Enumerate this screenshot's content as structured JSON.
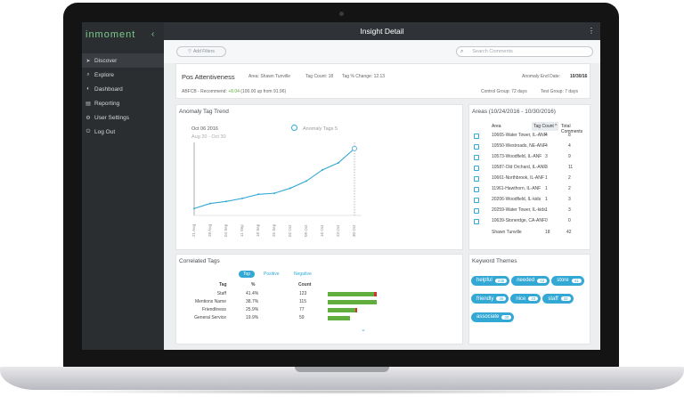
{
  "sidebar": {
    "logo": "inmoment",
    "collapse_icon": "chevron-left-icon",
    "items": [
      {
        "label": "Discover"
      },
      {
        "label": "Explore"
      },
      {
        "label": "Dashboard"
      },
      {
        "label": "Reporting"
      },
      {
        "label": "User Settings"
      },
      {
        "label": "Log Out"
      }
    ]
  },
  "header": {
    "title": "Insight Detail",
    "menu_icon": "kebab-icon"
  },
  "filters": {
    "add_label": "Add Filters",
    "search_placeholder": "Search Comments"
  },
  "summary": {
    "name": "Pos Attentiveness",
    "area": "Area: Shawn Tunville",
    "tag_count": "Tag Count: 18",
    "tag_change": "Tag % Change: 12.13",
    "anomaly_end_label": "Anomaly End Date:",
    "anomaly_end_value": "10/30/16",
    "recommend_prefix": "ABFCB - Recommend:",
    "recommend_delta": "+8.04",
    "recommend_suffix": "(100.00 up from 91.96)",
    "control_group": "Control Group: 72 days",
    "test_group": "Test Group: 7 days"
  },
  "trend": {
    "title": "Anomaly Tag Trend",
    "date": "Oct 06 2016",
    "range": "Aug 20 - Oct 30",
    "legend": "Anomaly Tags 5"
  },
  "chart_data": {
    "type": "line",
    "title": "Anomaly Tag Trend",
    "x": [
      "21 Aug",
      "28 Aug",
      "04 Sep",
      "11 Sep",
      "18 Sep",
      "25 Sep",
      "02 Oct",
      "09 Oct",
      "16 Oct",
      "23 Oct",
      "30 Oct"
    ],
    "series": [
      {
        "name": "Anomaly Tags",
        "values": [
          0.5,
          1.0,
          1.2,
          1.5,
          1.9,
          2.0,
          2.5,
          3.2,
          4.3,
          5.0,
          6.4
        ]
      }
    ]
  },
  "areas": {
    "title": "Areas (10/24/2016 - 10/30/2016)",
    "headers": [
      "Area",
      "Tag Count",
      "Total Comments"
    ],
    "sort_icon": "caret-up-icon",
    "rows": [
      [
        "10665-Water Tower, IL-ANF",
        "4",
        "8"
      ],
      [
        "10550-Westroads, NE-ANF",
        "4",
        "4"
      ],
      [
        "10573-Woodfield, IL-ANF",
        "3",
        "9"
      ],
      [
        "10587-Old Orchard, IL-ANF",
        "3",
        "11"
      ],
      [
        "10661-Northbrook, IL-ANF",
        "1",
        "2"
      ],
      [
        "11961-Hawthorn, IL-ANF",
        "1",
        "2"
      ],
      [
        "20206-Woodfield, IL-kids",
        "1",
        "3"
      ],
      [
        "20259-Water Tower, IL-kids",
        "1",
        "3"
      ],
      [
        "10639-Stonerdge, CA-ANF",
        "0",
        "0"
      ]
    ],
    "total": [
      "Shawn Tunville",
      "18",
      "42"
    ]
  },
  "correlated": {
    "title": "Correlated Tags",
    "tabs": [
      "Top",
      "Positive",
      "Negative"
    ],
    "headers": [
      "Tag",
      "%",
      "Count"
    ],
    "rows": [
      {
        "tag": "Staff",
        "pct": "41.4%",
        "count": "123",
        "fill": 0.92,
        "neg": 0.06
      },
      {
        "tag": "Mentions Name",
        "pct": "38.7%",
        "count": "115",
        "fill": 0.98,
        "neg": 0.0
      },
      {
        "tag": "Friendliness",
        "pct": "25.9%",
        "count": "77",
        "fill": 0.55,
        "neg": 0.04
      },
      {
        "tag": "General Service",
        "pct": "19.9%",
        "count": "59",
        "fill": 0.45,
        "neg": 0.0
      }
    ],
    "more_icon": "chevron-down-icon"
  },
  "keywords": {
    "title": "Keyword Themes",
    "items": [
      {
        "label": "helpful",
        "count": "235"
      },
      {
        "label": "needed",
        "count": "42"
      },
      {
        "label": "store",
        "count": "41"
      },
      {
        "label": "friendly",
        "count": "36"
      },
      {
        "label": "nice",
        "count": "23"
      },
      {
        "label": "staff",
        "count": "32"
      },
      {
        "label": "associate",
        "count": "30"
      }
    ]
  },
  "colors": {
    "accent": "#33a8d4",
    "positive": "#5fae3e",
    "negative": "#d6302a",
    "brand": "#7ccb8d"
  }
}
